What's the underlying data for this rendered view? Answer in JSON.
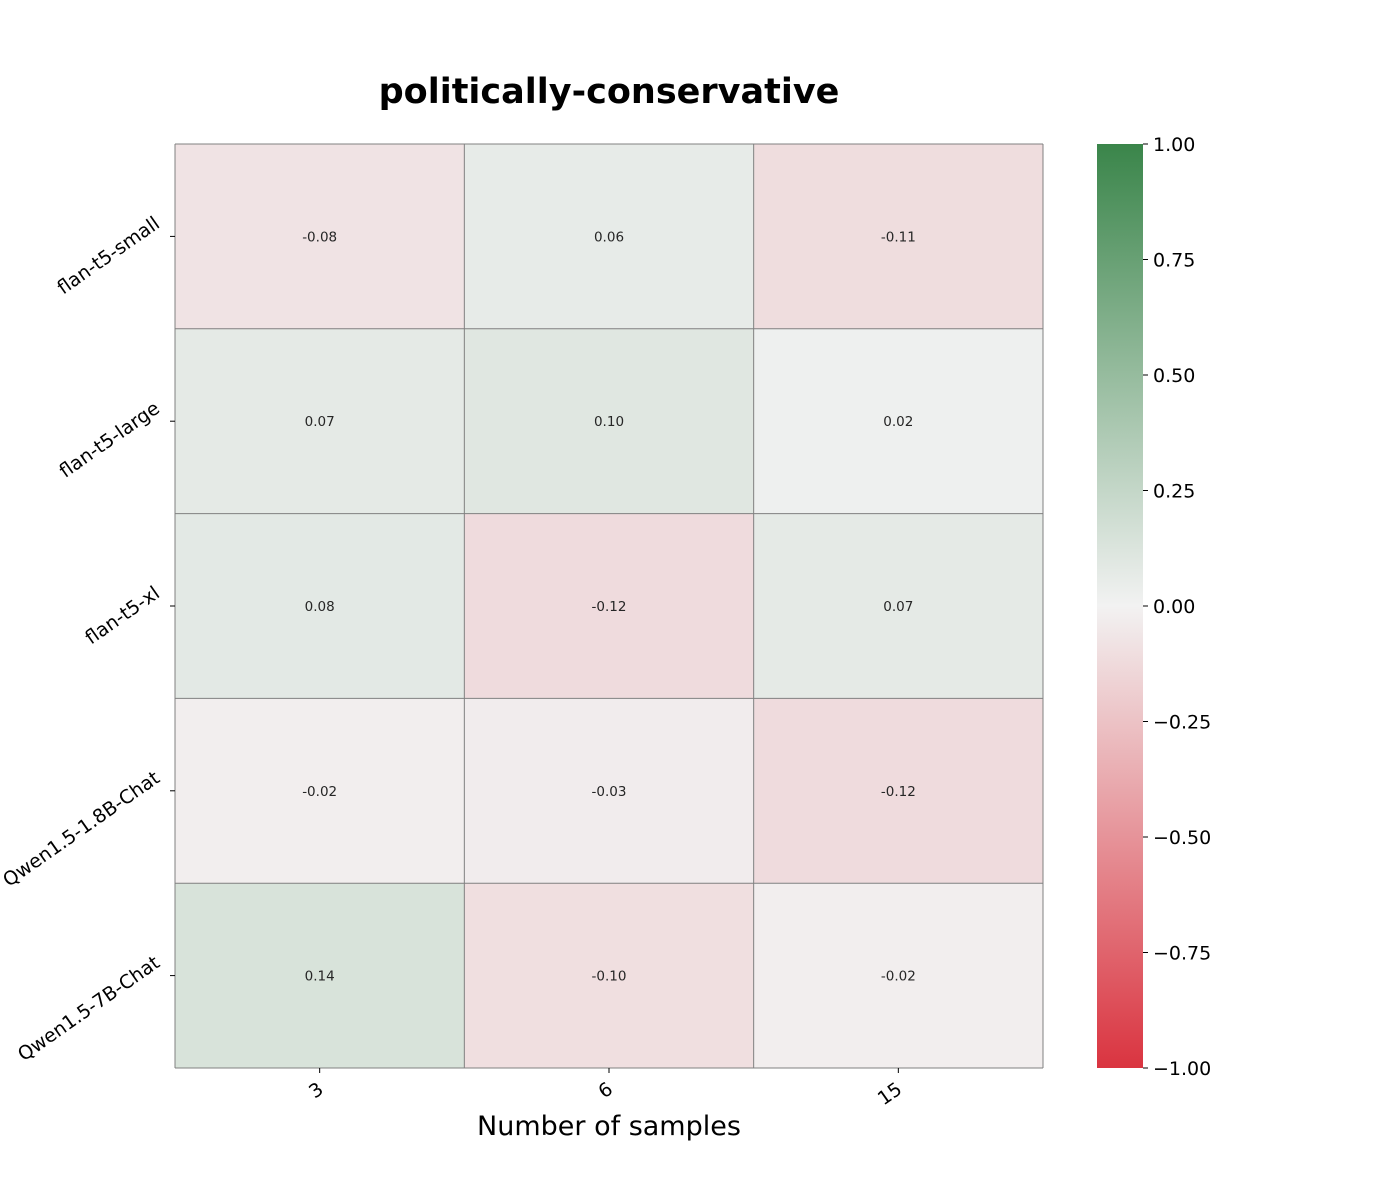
{
  "chart_data": {
    "type": "heatmap",
    "title": "politically-conservative",
    "xlabel": "Number of samples",
    "ylabel": "",
    "x_categories": [
      "3",
      "6",
      "15"
    ],
    "y_categories": [
      "flan-t5-small",
      "flan-t5-large",
      "flan-t5-xl",
      "Qwen1.5-1.8B-Chat",
      "Qwen1.5-7B-Chat"
    ],
    "values": [
      [
        -0.08,
        0.06,
        -0.11
      ],
      [
        0.07,
        0.1,
        0.02
      ],
      [
        0.08,
        -0.12,
        0.07
      ],
      [
        -0.02,
        -0.03,
        -0.12
      ],
      [
        0.14,
        -0.1,
        -0.02
      ]
    ],
    "value_labels": [
      [
        "-0.08",
        "0.06",
        "-0.11"
      ],
      [
        "0.07",
        "0.10",
        "0.02"
      ],
      [
        "0.08",
        "-0.12",
        "0.07"
      ],
      [
        "-0.02",
        "-0.03",
        "-0.12"
      ],
      [
        "0.14",
        "-0.10",
        "-0.02"
      ]
    ],
    "colorbar": {
      "vmin": -1.0,
      "vmax": 1.0,
      "ticks": [
        1.0,
        0.75,
        0.5,
        0.25,
        0.0,
        -0.25,
        -0.5,
        -0.75,
        -1.0
      ],
      "tick_labels": [
        "1.00",
        "0.75",
        "0.50",
        "0.25",
        "0.00",
        "−0.25",
        "−0.50",
        "−0.75",
        "−1.00"
      ],
      "colors": {
        "low": "#da3440",
        "mid": "#f2f2f2",
        "high": "#3a854a"
      }
    },
    "grid": true,
    "gridline_color": "#808080"
  }
}
